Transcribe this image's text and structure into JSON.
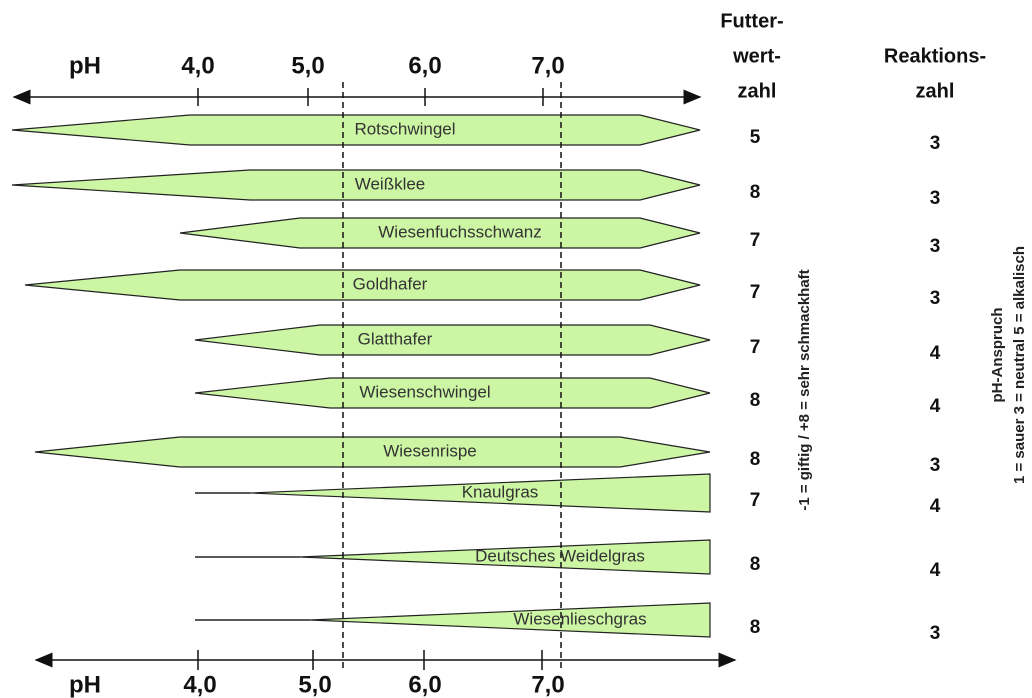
{
  "axis": {
    "label": "pH",
    "ticks": [
      "4,0",
      "5,0",
      "6,0",
      "7,0"
    ]
  },
  "columns": {
    "futterwert": [
      "Futter-",
      "wert-",
      "zahl"
    ],
    "reaktion": [
      "Reaktions-",
      "zahl"
    ]
  },
  "rows": [
    {
      "name": "Rotschwingel",
      "futterwert": "5",
      "reaktion": "3"
    },
    {
      "name": "Weißklee",
      "futterwert": "8",
      "reaktion": "3"
    },
    {
      "name": "Wiesenfuchsschwanz",
      "futterwert": "7",
      "reaktion": "3"
    },
    {
      "name": "Goldhafer",
      "futterwert": "7",
      "reaktion": "3"
    },
    {
      "name": "Glatthafer",
      "futterwert": "7",
      "reaktion": "4"
    },
    {
      "name": "Wiesenschwingel",
      "futterwert": "8",
      "reaktion": "4"
    },
    {
      "name": "Wiesenrispe",
      "futterwert": "8",
      "reaktion": "3"
    },
    {
      "name": "Knaulgras",
      "futterwert": "7",
      "reaktion": "4"
    },
    {
      "name": "Deutsches Weidelgras",
      "futterwert": "8",
      "reaktion": "4"
    },
    {
      "name": "Wiesenlieschgras",
      "futterwert": "8",
      "reaktion": "3"
    }
  ],
  "notes": {
    "futterwert": "-1 = giftig  /  +8 = sehr schmackhaft",
    "reaktion_title": "pH-Anspruch",
    "reaktion_scale": "1 = sauer  3 = neutral  5 = alkalisch"
  }
}
